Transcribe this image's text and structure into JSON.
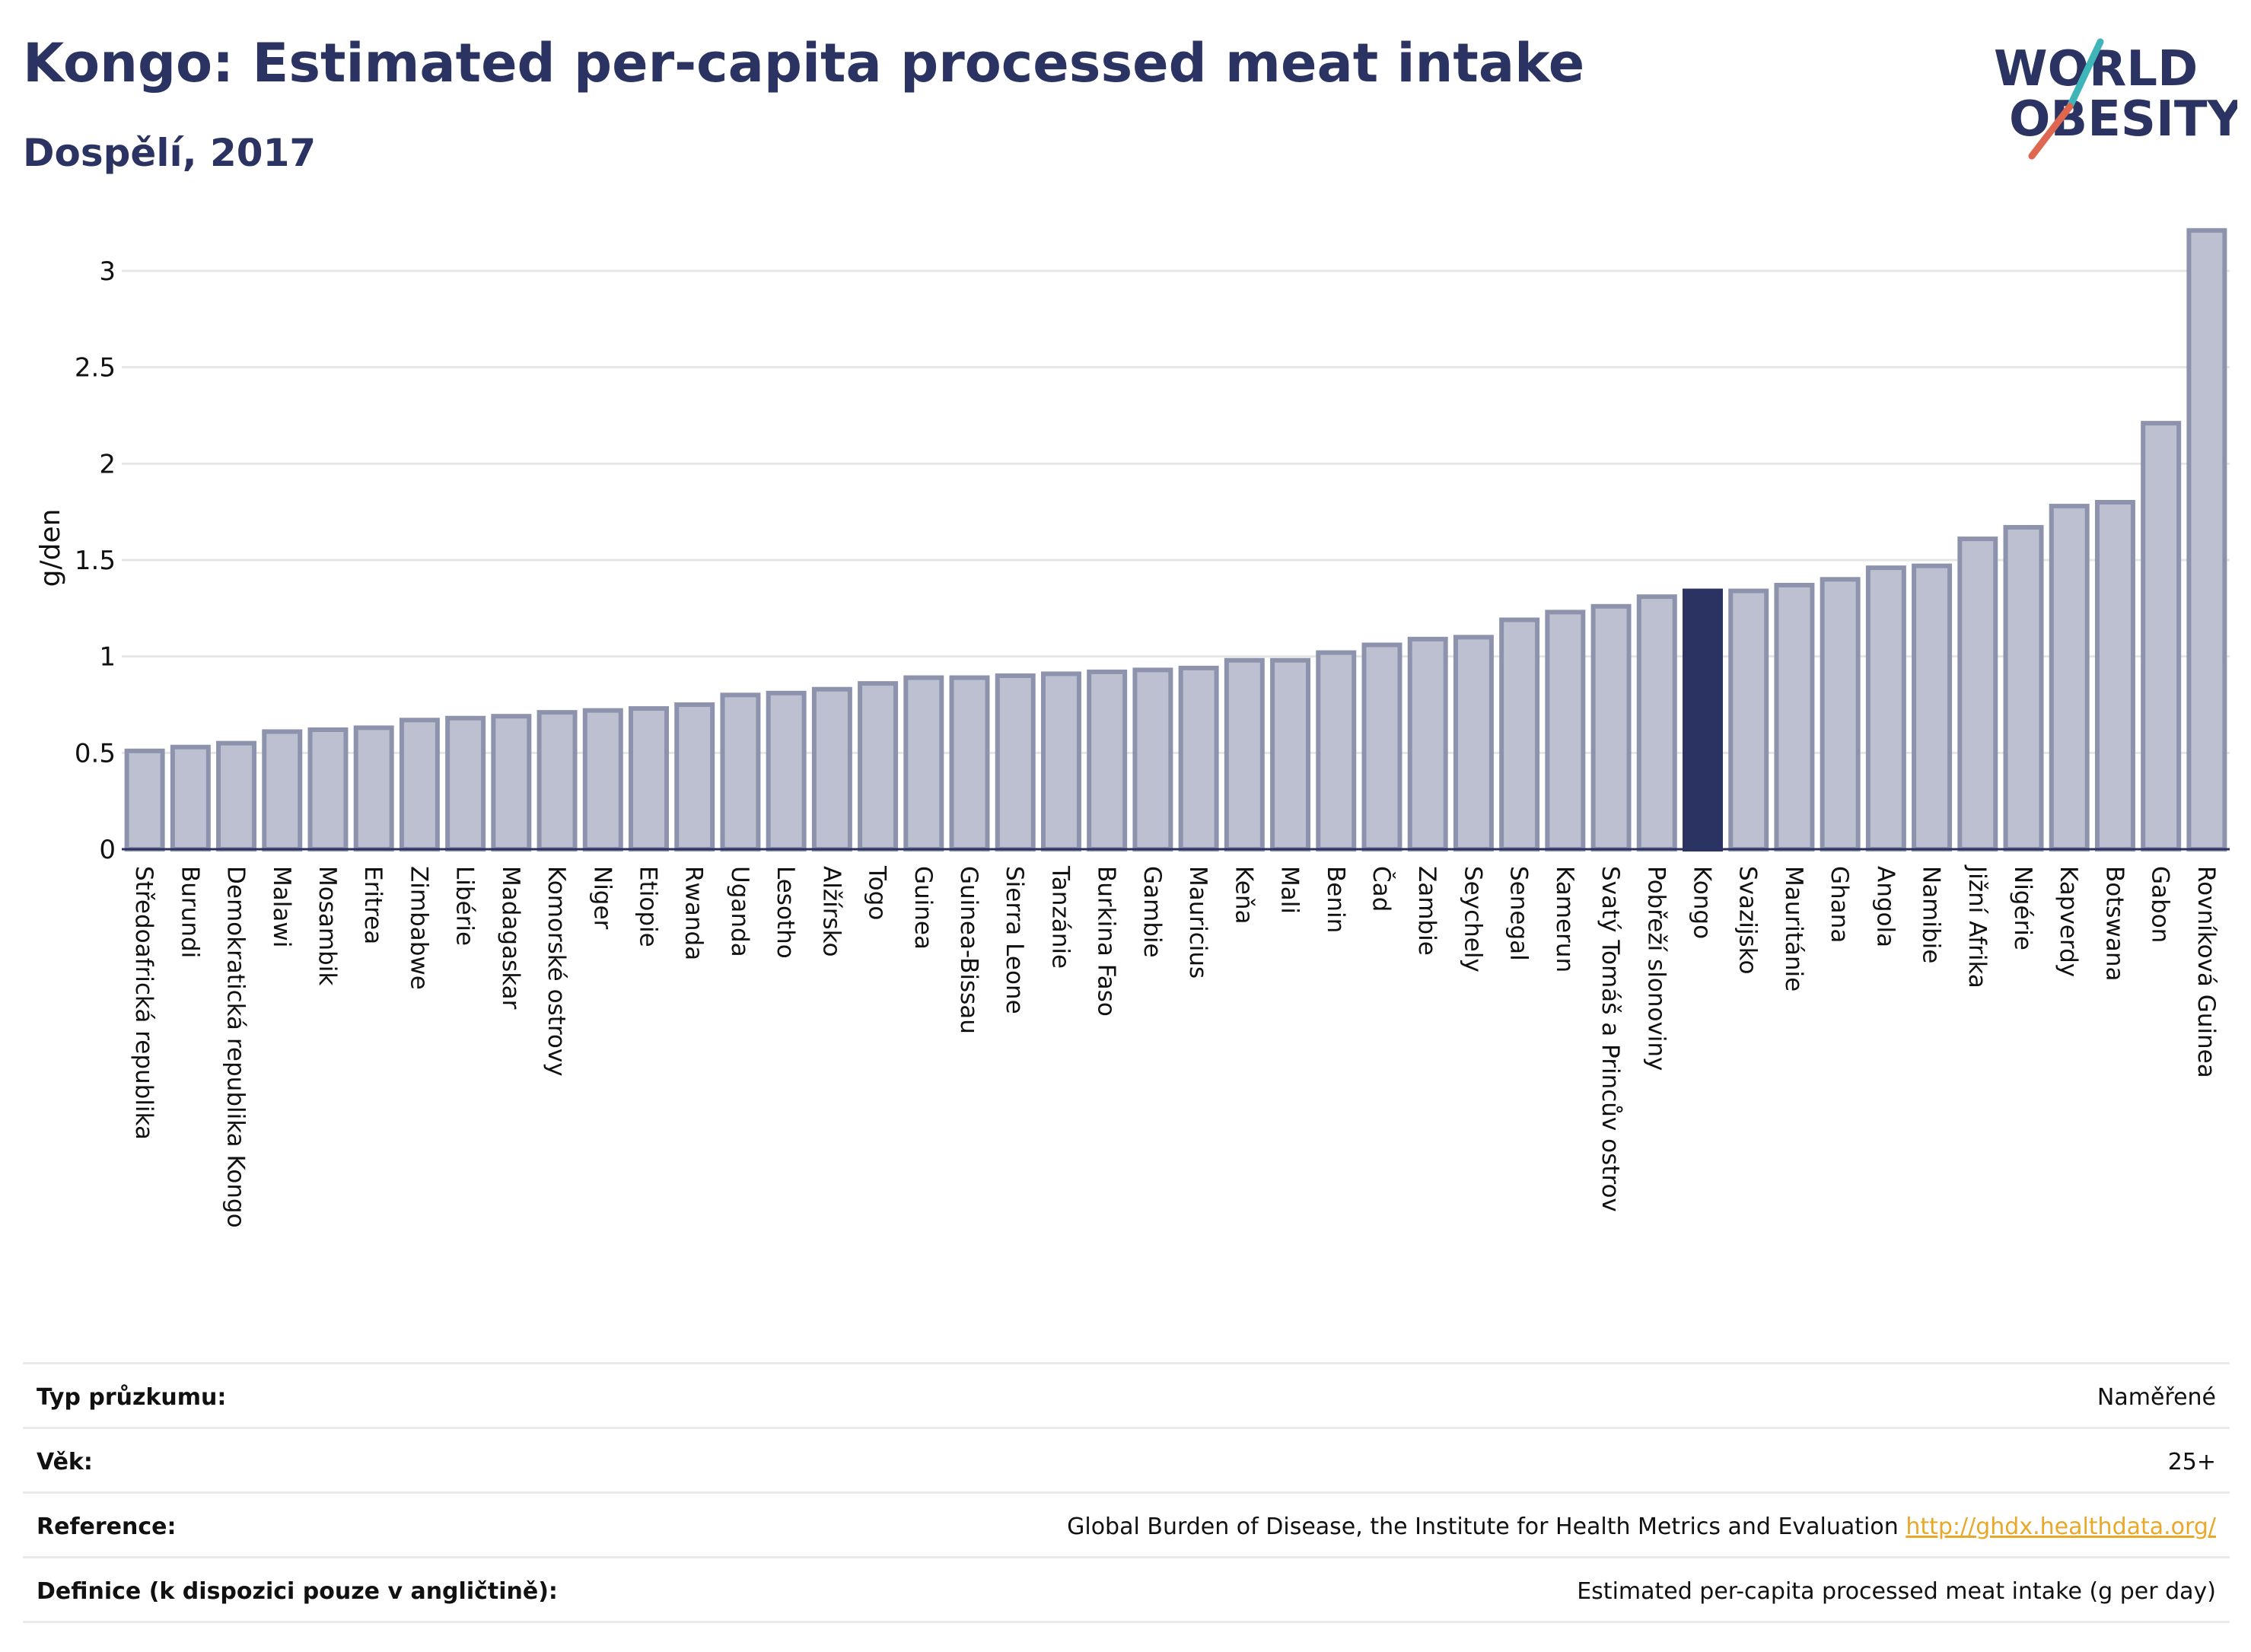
{
  "header": {
    "title": "Kongo: Estimated per-capita processed meat intake",
    "subtitle": "Dospělí, 2017",
    "logo_line1": "WORLD",
    "logo_line2": "OBESITY"
  },
  "colors": {
    "bar": "#bcc0d0",
    "bar_stroke": "#8d93ad",
    "highlight": "#2a3361",
    "grid": "#e6e6e6",
    "text": "#2a3361",
    "logo_teal": "#3fb5b9",
    "logo_red": "#e0674f"
  },
  "chart_data": {
    "type": "bar",
    "ylabel": "g/den",
    "ylim": [
      0,
      3.3
    ],
    "yticks": [
      "0",
      "0.5",
      "1",
      "1.5",
      "2",
      "2.5",
      "3"
    ],
    "grid": true,
    "highlight": "Kongo",
    "categories": [
      "Středoafrická republika",
      "Burundi",
      "Demokratická republika Kongo",
      "Malawi",
      "Mosambik",
      "Eritrea",
      "Zimbabwe",
      "Libérie",
      "Madagaskar",
      "Komorské ostrovy",
      "Niger",
      "Etiopie",
      "Rwanda",
      "Uganda",
      "Lesotho",
      "Alžírsko",
      "Togo",
      "Guinea",
      "Guinea-Bissau",
      "Sierra Leone",
      "Tanzánie",
      "Burkina Faso",
      "Gambie",
      "Mauricius",
      "Keňa",
      "Mali",
      "Benin",
      "Čad",
      "Zambie",
      "Seychely",
      "Senegal",
      "Kamerun",
      "Svatý Tomáš a Princův ostrov",
      "Pobřeží slonoviny",
      "Kongo",
      "Svazijsko",
      "Mauritánie",
      "Ghana",
      "Angola",
      "Namibie",
      "Jižní Afrika",
      "Nigérie",
      "Kapverdy",
      "Botswana",
      "Gabon",
      "Rovníková Guinea"
    ],
    "values": [
      0.51,
      0.53,
      0.55,
      0.61,
      0.62,
      0.63,
      0.67,
      0.68,
      0.69,
      0.71,
      0.72,
      0.73,
      0.75,
      0.8,
      0.81,
      0.83,
      0.86,
      0.89,
      0.89,
      0.9,
      0.91,
      0.92,
      0.93,
      0.94,
      0.98,
      0.98,
      1.02,
      1.06,
      1.09,
      1.1,
      1.19,
      1.23,
      1.26,
      1.31,
      1.34,
      1.34,
      1.37,
      1.4,
      1.46,
      1.47,
      1.61,
      1.67,
      1.78,
      1.8,
      2.21,
      3.21
    ]
  },
  "meta": {
    "rows": [
      {
        "label": "Typ průzkumu:",
        "value": "Naměřené"
      },
      {
        "label": "Věk:",
        "value": "25+"
      },
      {
        "label": "Reference:",
        "value": "Global Burden of Disease, the Institute for Health Metrics and Evaluation",
        "link": "http://ghdx.healthdata.org/"
      },
      {
        "label": "Definice (k dispozici pouze v angličtině):",
        "value": "Estimated per-capita processed meat intake (g per day)"
      }
    ]
  }
}
